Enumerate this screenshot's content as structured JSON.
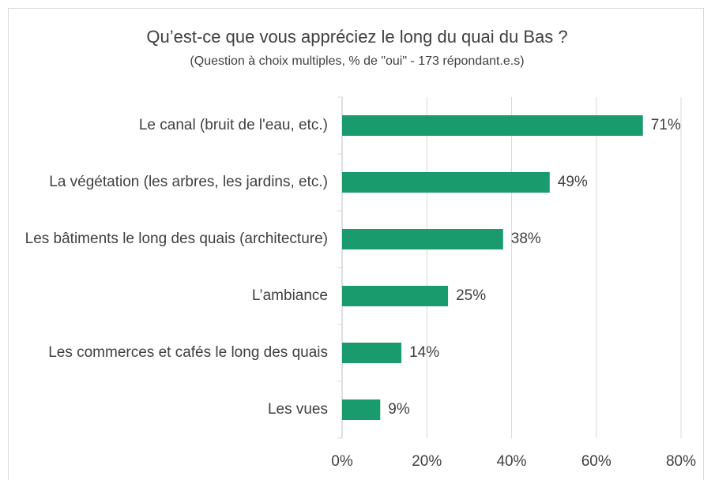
{
  "chart_data": {
    "type": "bar",
    "orientation": "horizontal",
    "title": "Qu’est-ce que vous appréciez le long du quai du Bas ?",
    "subtitle": "(Question à choix multiples, % de \"oui\" - 173 répondant.e.s)",
    "categories": [
      "Le canal (bruit de l'eau, etc.)",
      "La végétation (les arbres, les jardins, etc.)",
      "Les bâtiments le long des quais (architecture)",
      "L’ambiance",
      "Les commerces et cafés le long des quais",
      "Les vues"
    ],
    "values": [
      71,
      49,
      38,
      25,
      14,
      9
    ],
    "value_labels": [
      "71%",
      "49%",
      "38%",
      "25%",
      "14%",
      "9%"
    ],
    "color": "#1a9b6e",
    "xlim": [
      0,
      80
    ],
    "xticks": [
      {
        "value": 0,
        "label": "0%"
      },
      {
        "value": 20,
        "label": "20%"
      },
      {
        "value": 40,
        "label": "40%"
      },
      {
        "value": 60,
        "label": "60%"
      },
      {
        "value": 80,
        "label": "80%"
      }
    ],
    "grid": true
  }
}
